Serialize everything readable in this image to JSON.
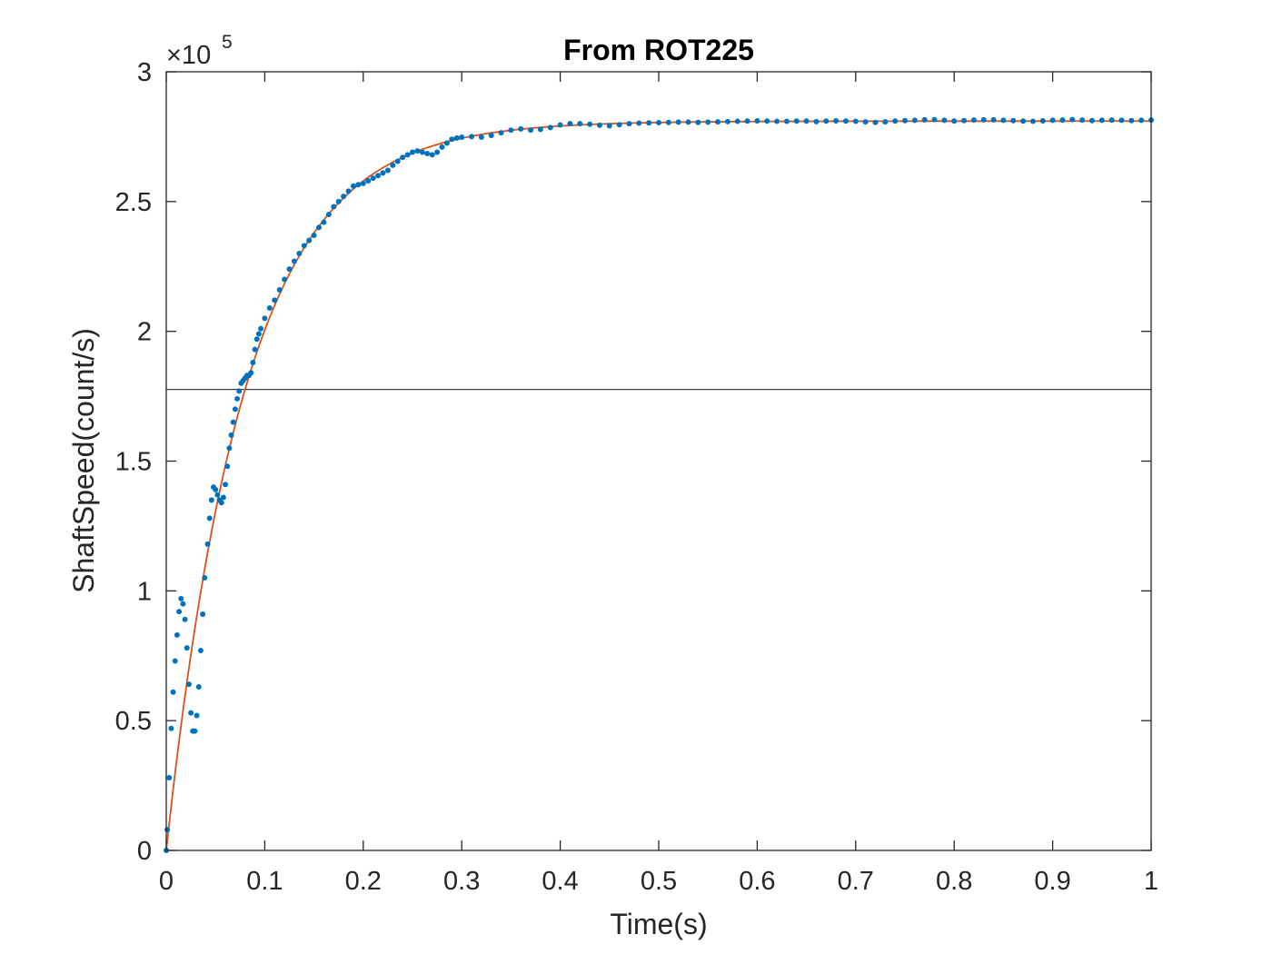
{
  "chart_data": {
    "type": "scatter",
    "title": "From ROT225",
    "xlabel": "Time(s)",
    "ylabel": "ShaftSpeed(count/s)",
    "xlim": [
      0,
      1
    ],
    "ylim": [
      0,
      300000
    ],
    "y_exponent_label": "×10",
    "y_exponent_power": "5",
    "x_ticks": [
      "0",
      "0.1",
      "0.2",
      "0.3",
      "0.4",
      "0.5",
      "0.6",
      "0.7",
      "0.8",
      "0.9",
      "1"
    ],
    "y_ticks": [
      "0",
      "0.5",
      "1",
      "1.5",
      "2",
      "2.5",
      "3"
    ],
    "grid": false,
    "box": true,
    "colors": {
      "measured": "#0072BD",
      "fit": "#D95319",
      "reference": "#404040",
      "axes": "#262626"
    },
    "measured_points": [
      [
        0.0,
        0
      ],
      [
        0.001,
        8000
      ],
      [
        0.003,
        28000
      ],
      [
        0.005,
        47000
      ],
      [
        0.007,
        61000
      ],
      [
        0.009,
        73000
      ],
      [
        0.011,
        83000
      ],
      [
        0.013,
        92000
      ],
      [
        0.015,
        97000
      ],
      [
        0.017,
        95000
      ],
      [
        0.019,
        89000
      ],
      [
        0.021,
        78000
      ],
      [
        0.023,
        64000
      ],
      [
        0.025,
        53000
      ],
      [
        0.027,
        46000
      ],
      [
        0.029,
        46000
      ],
      [
        0.031,
        52000
      ],
      [
        0.033,
        63000
      ],
      [
        0.035,
        77000
      ],
      [
        0.037,
        91000
      ],
      [
        0.039,
        105000
      ],
      [
        0.042,
        118000
      ],
      [
        0.044,
        128000
      ],
      [
        0.046,
        135000
      ],
      [
        0.048,
        140000
      ],
      [
        0.05,
        139000
      ],
      [
        0.052,
        137000
      ],
      [
        0.054,
        135000
      ],
      [
        0.056,
        134000
      ],
      [
        0.058,
        136000
      ],
      [
        0.06,
        141000
      ],
      [
        0.062,
        148000
      ],
      [
        0.064,
        155000
      ],
      [
        0.066,
        160000
      ],
      [
        0.068,
        165000
      ],
      [
        0.07,
        170000
      ],
      [
        0.072,
        174000
      ],
      [
        0.074,
        177000
      ],
      [
        0.076,
        180000
      ],
      [
        0.078,
        181000
      ],
      [
        0.08,
        182000
      ],
      [
        0.082,
        183000
      ],
      [
        0.084,
        183000
      ],
      [
        0.086,
        184000
      ],
      [
        0.088,
        188000
      ],
      [
        0.09,
        193000
      ],
      [
        0.092,
        197000
      ],
      [
        0.094,
        199000
      ],
      [
        0.096,
        201000
      ],
      [
        0.1,
        205000
      ],
      [
        0.105,
        209000
      ],
      [
        0.11,
        212000
      ],
      [
        0.115,
        216000
      ],
      [
        0.12,
        220000
      ],
      [
        0.125,
        224000
      ],
      [
        0.13,
        227000
      ],
      [
        0.135,
        230000
      ],
      [
        0.14,
        233000
      ],
      [
        0.145,
        235000
      ],
      [
        0.15,
        237000
      ],
      [
        0.155,
        240000
      ],
      [
        0.16,
        242000
      ],
      [
        0.165,
        245000
      ],
      [
        0.17,
        248000
      ],
      [
        0.175,
        250000
      ],
      [
        0.18,
        252000
      ],
      [
        0.185,
        254000
      ],
      [
        0.19,
        256000
      ],
      [
        0.195,
        256500
      ],
      [
        0.2,
        257000
      ],
      [
        0.205,
        258000
      ],
      [
        0.21,
        259000
      ],
      [
        0.215,
        260000
      ],
      [
        0.22,
        261000
      ],
      [
        0.225,
        262000
      ],
      [
        0.23,
        264000
      ],
      [
        0.235,
        265500
      ],
      [
        0.24,
        267000
      ],
      [
        0.245,
        268000
      ],
      [
        0.25,
        269000
      ],
      [
        0.255,
        269500
      ],
      [
        0.26,
        269000
      ],
      [
        0.265,
        268500
      ],
      [
        0.27,
        268000
      ],
      [
        0.275,
        269000
      ],
      [
        0.28,
        271000
      ],
      [
        0.285,
        272500
      ],
      [
        0.29,
        274000
      ],
      [
        0.295,
        274500
      ],
      [
        0.3,
        274800
      ],
      [
        0.31,
        275000
      ],
      [
        0.32,
        274800
      ],
      [
        0.33,
        275500
      ],
      [
        0.34,
        276500
      ],
      [
        0.35,
        277500
      ],
      [
        0.36,
        278000
      ],
      [
        0.37,
        277500
      ],
      [
        0.38,
        277800
      ],
      [
        0.39,
        278500
      ],
      [
        0.4,
        279500
      ],
      [
        0.41,
        280000
      ],
      [
        0.42,
        280000
      ],
      [
        0.43,
        279800
      ],
      [
        0.44,
        279400
      ],
      [
        0.45,
        279200
      ],
      [
        0.46,
        279600
      ],
      [
        0.47,
        280000
      ],
      [
        0.48,
        280200
      ],
      [
        0.49,
        280300
      ],
      [
        0.5,
        280400
      ],
      [
        0.51,
        280500
      ],
      [
        0.52,
        280600
      ],
      [
        0.53,
        280600
      ],
      [
        0.54,
        280500
      ],
      [
        0.55,
        280600
      ],
      [
        0.56,
        280700
      ],
      [
        0.57,
        280800
      ],
      [
        0.58,
        280900
      ],
      [
        0.59,
        281000
      ],
      [
        0.6,
        281100
      ],
      [
        0.61,
        281000
      ],
      [
        0.62,
        280900
      ],
      [
        0.63,
        280900
      ],
      [
        0.64,
        281000
      ],
      [
        0.65,
        281000
      ],
      [
        0.66,
        280800
      ],
      [
        0.67,
        281000
      ],
      [
        0.68,
        281100
      ],
      [
        0.69,
        281000
      ],
      [
        0.7,
        280900
      ],
      [
        0.71,
        280700
      ],
      [
        0.72,
        280500
      ],
      [
        0.73,
        280700
      ],
      [
        0.74,
        281000
      ],
      [
        0.75,
        281200
      ],
      [
        0.76,
        281300
      ],
      [
        0.77,
        281500
      ],
      [
        0.78,
        281600
      ],
      [
        0.79,
        281300
      ],
      [
        0.8,
        281000
      ],
      [
        0.81,
        281200
      ],
      [
        0.82,
        281400
      ],
      [
        0.83,
        281500
      ],
      [
        0.84,
        281500
      ],
      [
        0.85,
        281300
      ],
      [
        0.86,
        281200
      ],
      [
        0.87,
        281000
      ],
      [
        0.88,
        280900
      ],
      [
        0.89,
        281100
      ],
      [
        0.9,
        281300
      ],
      [
        0.91,
        281400
      ],
      [
        0.92,
        281600
      ],
      [
        0.93,
        281400
      ],
      [
        0.94,
        281200
      ],
      [
        0.95,
        281300
      ],
      [
        0.96,
        281400
      ],
      [
        0.97,
        281300
      ],
      [
        0.98,
        281200
      ],
      [
        0.99,
        281300
      ],
      [
        1.0,
        281400
      ]
    ],
    "fit_curve": {
      "type": "first-order step response",
      "final_value": 281000,
      "time_constant": 0.08
    },
    "reference_line": 177600
  }
}
